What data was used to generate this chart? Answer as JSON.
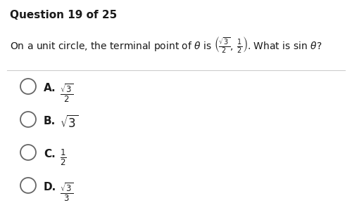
{
  "background_color": "#ffffff",
  "question_header": "Question 19 of 25",
  "question_math": "On a unit circle, the terminal point of $\\theta$ is $\\left(\\frac{\\sqrt{3}}{2},\\,\\frac{1}{2}\\right)$. What is sin $\\theta$?",
  "options": [
    {
      "label": "A.",
      "math": "$\\frac{\\sqrt{3}}{2}$"
    },
    {
      "label": "B.",
      "math": "$\\sqrt{3}$"
    },
    {
      "label": "C.",
      "math": "$\\frac{1}{2}$"
    },
    {
      "label": "D.",
      "math": "$\\frac{\\sqrt{3}}{3}$"
    }
  ],
  "header_fontsize": 11,
  "question_fontsize": 10,
  "option_label_fontsize": 11,
  "option_math_fontsize": 12,
  "text_color": "#1a1a1a",
  "circle_color": "#666666",
  "divider_color": "#cccccc"
}
